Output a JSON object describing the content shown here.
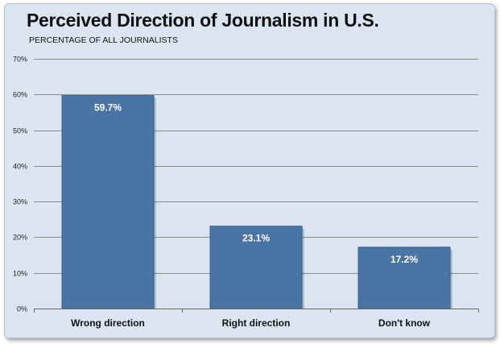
{
  "chart_data": {
    "type": "bar",
    "title": "Perceived Direction of Journalism in U.S.",
    "subtitle": "PERCENTAGE OF ALL JOURNALISTS",
    "xlabel": "",
    "ylabel": "",
    "categories": [
      "Wrong direction",
      "Right direction",
      "Don't know"
    ],
    "values": [
      59.7,
      23.1,
      17.2
    ],
    "value_labels": [
      "59.7%",
      "23.1%",
      "17.2%"
    ],
    "ylim": [
      0,
      70
    ],
    "y_ticks": [
      0,
      10,
      20,
      30,
      40,
      50,
      60,
      70
    ],
    "y_tick_labels": [
      "0%",
      "10%",
      "20%",
      "30%",
      "40%",
      "50%",
      "60%",
      "70%"
    ],
    "grid": true,
    "legend": "none",
    "colors": {
      "bar": "#4a74a4",
      "bar_edge": "#3a6190",
      "background": "#dbe5f1",
      "grid": "#8c8c8c"
    }
  }
}
